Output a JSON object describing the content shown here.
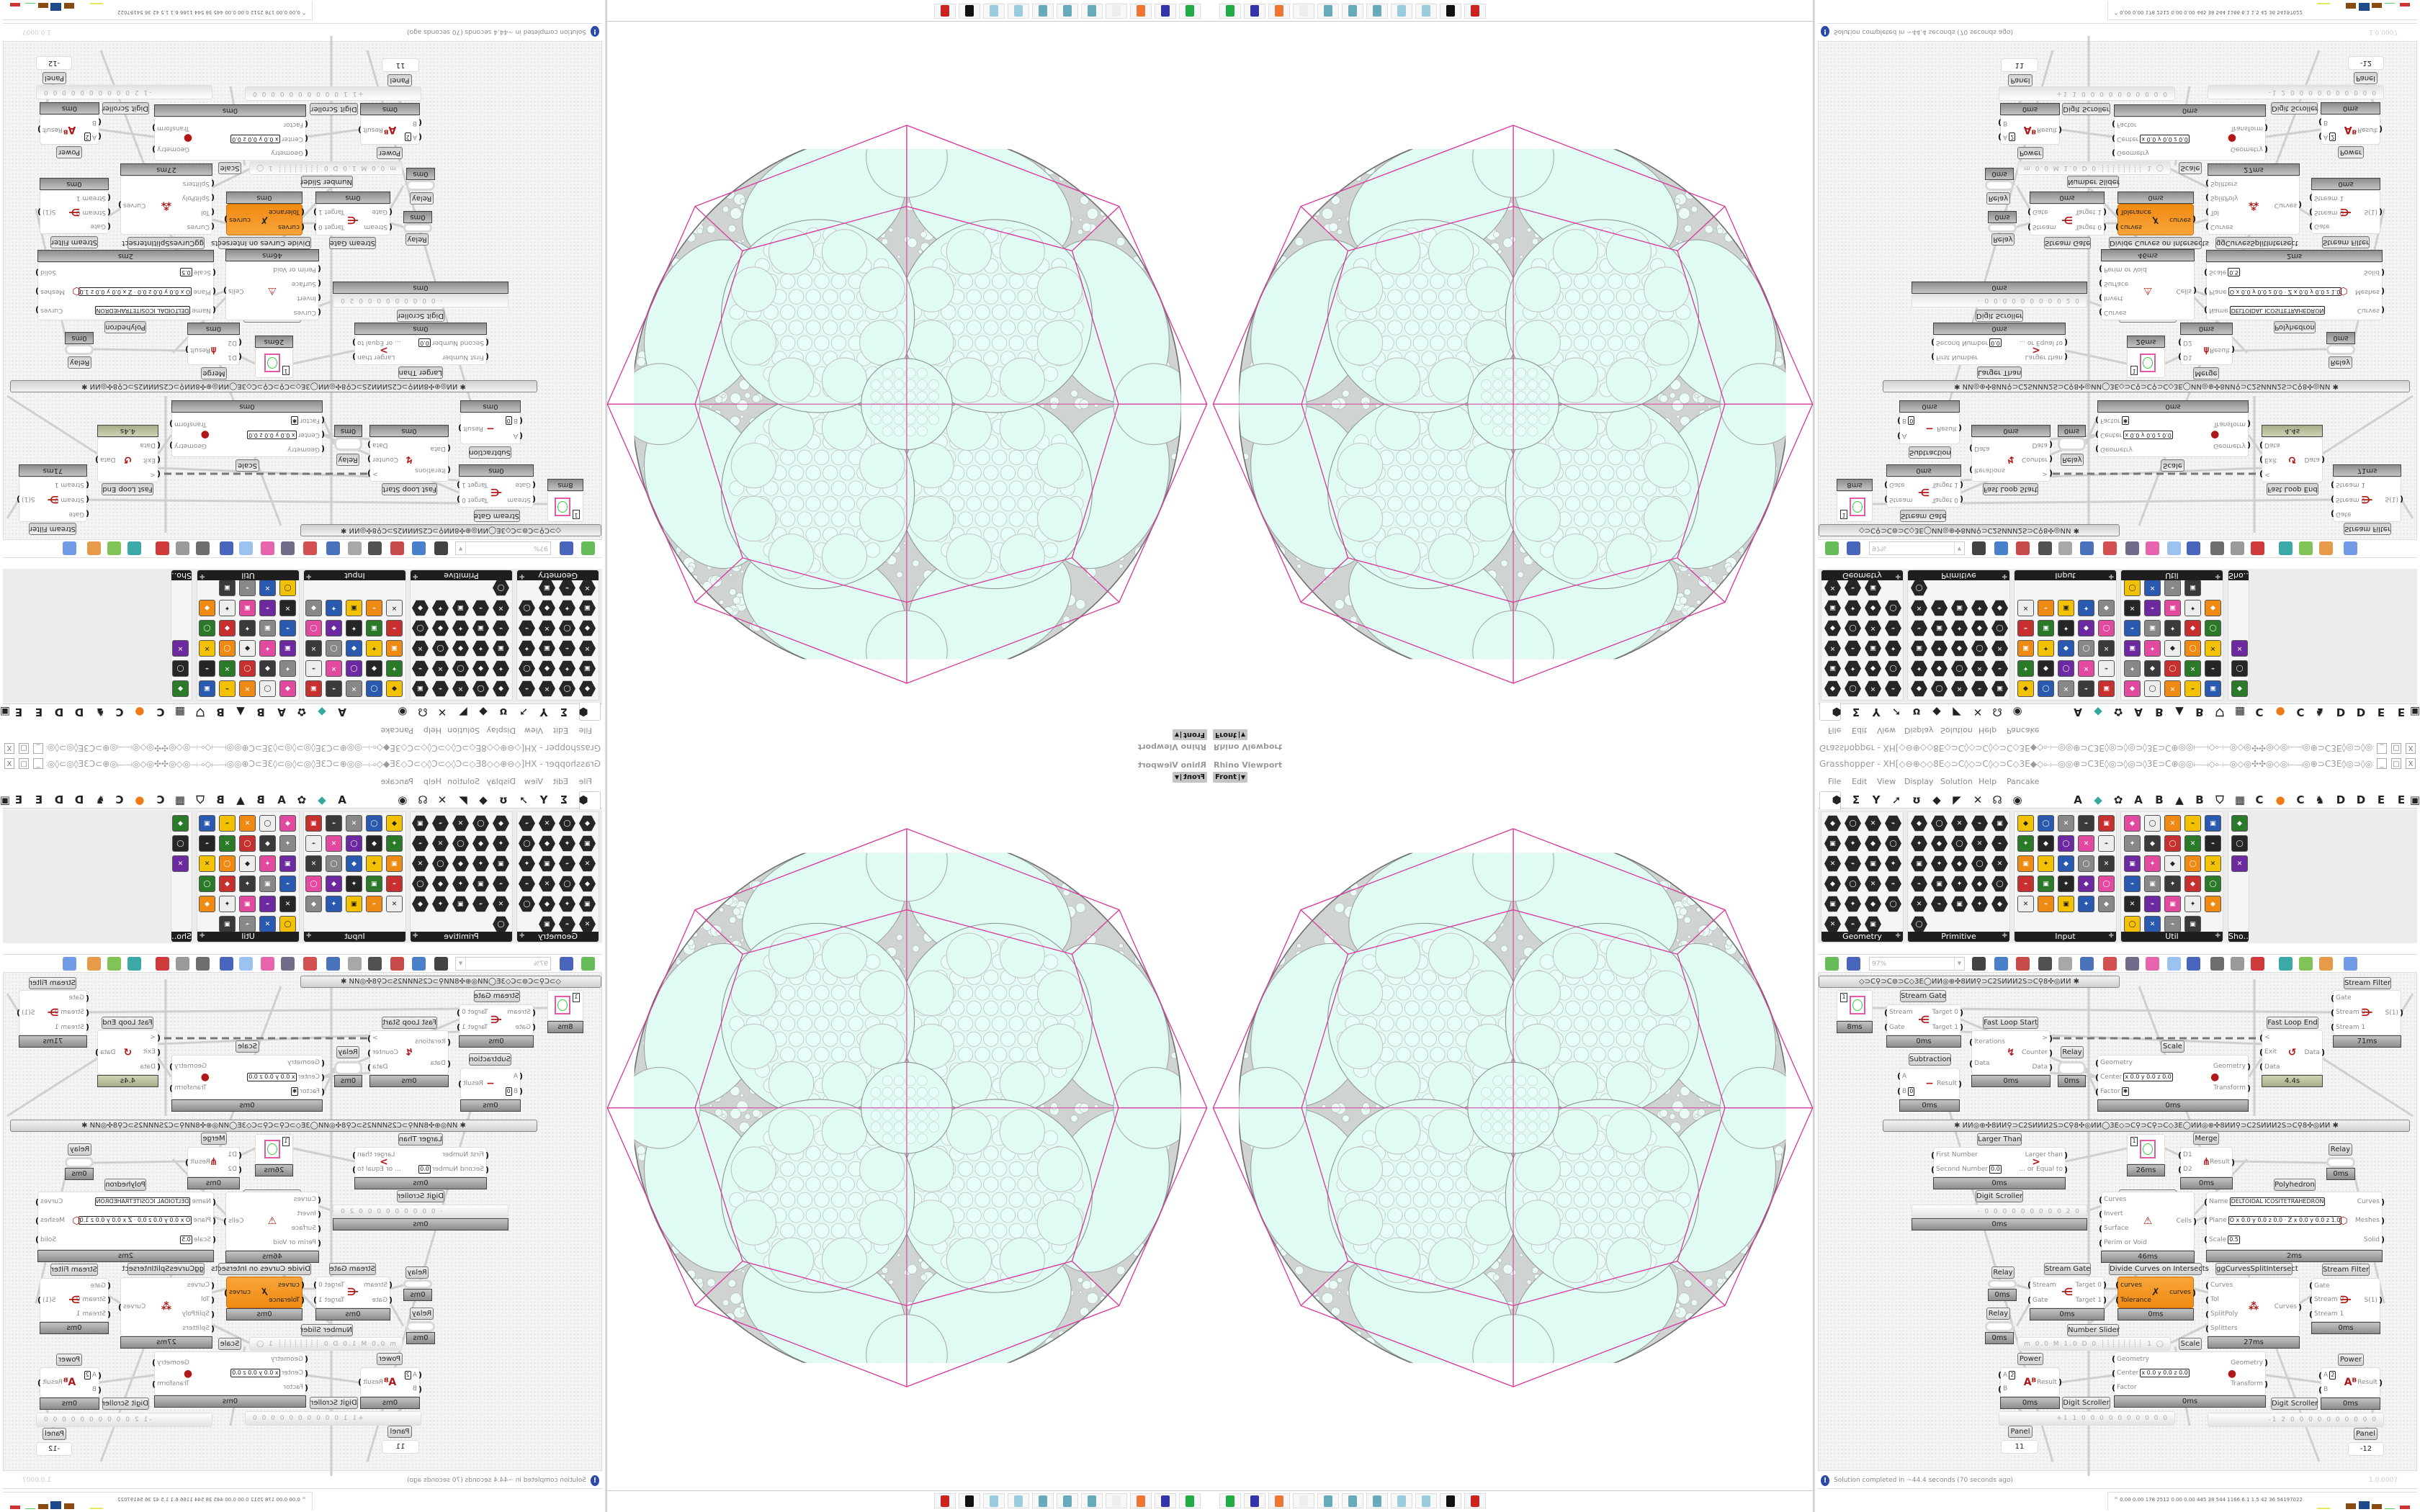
{
  "viewport": {
    "label": "Rhino Viewport",
    "view": "Front",
    "colors": {
      "fill": "#e0fbf3",
      "outline": "#d63c9a",
      "lace": "#c4c4c4"
    },
    "taskbar_icons": [
      "rhino-console-icon",
      "floppy-64-icon",
      "firefox-icon",
      "blank-app-icon",
      "calculator-icon",
      "calculator-icon",
      "calculator-icon",
      "notepad-icon",
      "notepad-icon",
      "inkscape-icon",
      "red-app-icon"
    ]
  },
  "grasshopper": {
    "title": "Grasshopper - XH[◇⊖⊕◇◇8E◇⊃C◊◇⊃C◊◇⊃C◇3E◆◇⟜⟝◎◎⊕⊃C3E◊◎⊃◊◎⊃◊3E⊃C⊕◎◎⟝⟞◇⟜⟝◎◇◎✣✣◎◇◎⟝⟞◎⊕⊃C3E◊◎⊃◊◎⊃◊◎…",
    "window_buttons": [
      "_",
      "□",
      "X"
    ],
    "menu": [
      "File",
      "Edit",
      "View",
      "Display",
      "Solution",
      "Help",
      "Pancake"
    ],
    "tabs_left": [
      "⬢",
      "Σ",
      "Y",
      "➚",
      "ʊ",
      "◆",
      "◤",
      "✕",
      "☊",
      "◉"
    ],
    "tabs_right": [
      "A",
      "◆",
      "✿",
      "A",
      "B",
      "▲",
      "B",
      "⛉",
      "▦",
      "C",
      "●",
      "C",
      "♞",
      "D",
      "D",
      "E",
      "E",
      "▣"
    ],
    "palette": [
      {
        "label": "Geometry",
        "shape": "hex",
        "icons": [
          "box-icon",
          "brep-icon",
          "circle-icon",
          "spiral-icon",
          "cross-icon",
          "surface-icon",
          "mesh-icon",
          "field-icon",
          "arrow-icon",
          "plane-icon",
          "text-tag-icon",
          "curve-wave-icon",
          "ring-icon",
          "cube-icon",
          "group-icon",
          "atom-icon",
          "line-icon",
          "sphere-icon",
          "mesh-face-icon",
          "transform-icon",
          "twisted-box-icon",
          "sphere-mesh-icon",
          "magnet-icon"
        ]
      },
      {
        "label": "Primitive",
        "shape": "hex",
        "icons": [
          "colour-icon",
          "culture-icon",
          "matrix-icon",
          "domain-icon",
          "path-icon",
          "data-icon",
          "vector-field-icon",
          "time-icon",
          "file-path-icon",
          "generic-icon",
          "scissors-icon",
          "string-icon",
          "shader-icon",
          "data-path-icon",
          "integer-icon",
          "interval-icon",
          "tree-icon",
          "complex-icon",
          "number-icon",
          "grid-icon",
          "complex-number-icon",
          "file-icon",
          "text-icon",
          "id-icon",
          "material-icon",
          "transform-icon"
        ]
      },
      {
        "label": "Input",
        "shape": "sq",
        "icons": [
          "import-icon",
          "button-icon",
          "colour-wheel-icon",
          "3dm-icon",
          "binary-icon",
          "graph-icon",
          "gradient-icon",
          "control-knob-icon",
          "xyz-icon",
          "toggle-icon",
          "colour-swatch-icon",
          "colour-picker-icon",
          "img-icon",
          "knob-icon",
          "checker-icon",
          "graph-mapper-icon",
          "pdb-icon",
          "slider-icon",
          "calendar-icon",
          "gimbal-icon",
          "shp-icon",
          "value-list-icon",
          "clock-icon",
          "spectrum-icon",
          "id-tag-icon"
        ]
      },
      {
        "label": "Util",
        "shape": "sq",
        "icons": [
          "cherry-icon",
          "magnet-icon",
          "arrow-right-icon",
          "cluster-icon",
          "text-icon",
          "play-icon",
          "record-icon",
          "search-icon",
          "spiral-icon",
          "sphere-icon",
          "axes-icon",
          "pencil-icon",
          "stopwatch-icon",
          "seven-icon",
          "flask-icon",
          "tree-icon",
          "question-icon",
          "egg-icon",
          "key-icon",
          "function-icon",
          "blob-icon",
          "refresh-icon",
          "premiere-icon",
          "number-icon",
          "palette-icon",
          "abc-icon",
          "arrow-icon",
          "gauge-icon",
          "close-icon"
        ]
      },
      {
        "label": "Sho…",
        "shape": "sq",
        "icons": [
          "headset-icon",
          "headset-icon",
          "presentation-icon"
        ]
      }
    ],
    "toolbar": {
      "zoom": "97%",
      "items": [
        "open-file-icon",
        "save-file-icon",
        "zoom-extents-icon",
        "preview-eye-icon",
        "sketch-icon",
        "bracket-icon",
        "at-icon",
        "gha-icon",
        "image-icon",
        "search-s-icon",
        "package-icon",
        "balloon-icon",
        "cross-wires-icon",
        "bell-icon",
        "cylinder-icon",
        "red-gem-icon",
        "teal-shape-icon",
        "green-shape-icon",
        "sphere-half-icon",
        "blue-sphere-icon"
      ]
    },
    "group_bars": [
      "◇⊃C⚲⊃C⊚⊃C◇3E◯ИИ◎⊕✣8ИИ⚲⊃C2SИИИ2S⊃C⚲8✣◎ИИ     ✱",
      "✱      ИИ◎⊕✣8ИИ⚲⊃C2SИИИ2S⊃C⚲8✣◎ИИ◯3E◇⊃C⚲⊃C⚲⊃C◇3E◯ИИ◎⊕✣8ИИ⚲⊃C2SИИИ2S⊃C⚲8✣◎ИИ      ✱"
    ],
    "nodes": [
      {
        "type": "preview",
        "value": "1",
        "timer": "8ms"
      },
      {
        "type": "component",
        "name": "Stream Gate",
        "icon": "⋲",
        "inputs": [
          "Stream",
          "Gate"
        ],
        "outputs": [
          "Target 0",
          "Target 1"
        ],
        "timer": "0ms"
      },
      {
        "type": "component",
        "name": "Fast Loop Start",
        "icon": "↯",
        "inputs": [
          "Iterations",
          "Data"
        ],
        "outputs": [
          ">",
          "Counter",
          "Data"
        ],
        "timer": "0ms"
      },
      {
        "type": "relay",
        "name": "Relay",
        "timer": "0ms"
      },
      {
        "type": "component",
        "name": "Subtraction",
        "icon": "−",
        "inputs": [
          "A",
          {
            "label": "B",
            "value": "0"
          }
        ],
        "outputs": [
          "Result"
        ],
        "timer": "0ms"
      },
      {
        "type": "component",
        "name": "Scale",
        "icon": "●",
        "inputs": [
          "Geometry",
          {
            "label": "Center",
            "value": "x 0.0 y 0.0 z 0.0"
          },
          {
            "label": "Factor",
            "value": "✱"
          }
        ],
        "outputs": [
          "Geometry",
          "Transform"
        ],
        "timer": "0ms"
      },
      {
        "type": "component",
        "name": "Fast Loop End",
        "icon": "↺",
        "inputs": [
          "<",
          "Exit",
          "Data"
        ],
        "outputs": [
          "Data"
        ],
        "timer": "4.4s",
        "timer_style": "green"
      },
      {
        "type": "component",
        "name": "Stream Filter",
        "icon": "⋺",
        "inputs": [
          "Gate",
          "Stream 0",
          "Stream 1"
        ],
        "outputs": [
          "S(1)"
        ],
        "timer": "71ms"
      },
      {
        "type": "component",
        "name": "Larger Than",
        "icon": ">",
        "inputs": [
          "First Number",
          {
            "label": "Second Number",
            "value": "0.0"
          }
        ],
        "outputs": [
          "Larger than",
          "... or Equal to"
        ],
        "timer": "0ms"
      },
      {
        "type": "preview",
        "value": "1",
        "timer": "26ms",
        "name": "ggNetworkPatch"
      },
      {
        "type": "component",
        "name": "Merge",
        "icon": "⋔",
        "inputs": [
          "D1",
          "D2"
        ],
        "outputs": [
          "Result"
        ],
        "timer": "0ms"
      },
      {
        "type": "relay",
        "name": "Relay",
        "timer": "0ms"
      },
      {
        "type": "scroller",
        "name": "Digit Scroller",
        "digits": "· 0 0 0 0 0 0 0 0 0 2 0",
        "timer": "0ms"
      },
      {
        "type": "component",
        "name": "",
        "icon": "⚠",
        "inputs": [
          "Curves",
          "Invert",
          "Surface",
          "Perim or Void"
        ],
        "outputs": [
          "Cells"
        ],
        "timer": "46ms"
      },
      {
        "type": "component",
        "name": "Polyhedron",
        "icon": "⬡",
        "inputs": [
          {
            "label": "Name",
            "value": "DELTOIDAL ICOSITETRAHEDRON"
          },
          {
            "label": "Plane",
            "value": "O x 0.0 y 0.0 z 0.0 · Z x 0.0 y 0.0 z 1.0"
          },
          {
            "label": "Scale",
            "value": "0.5"
          }
        ],
        "outputs": [
          "Curves",
          "Meshes",
          "Solid"
        ],
        "timer": "2ms"
      },
      {
        "type": "relay",
        "name": "Relay",
        "timer": "0ms"
      },
      {
        "type": "relay",
        "name": "Relay",
        "timer": "0ms"
      },
      {
        "type": "component",
        "name": "Stream Gate",
        "icon": "⋲",
        "inputs": [
          "Stream",
          "Gate"
        ],
        "outputs": [
          "Target 0",
          "Target 1"
        ],
        "timer": "0ms"
      },
      {
        "type": "component",
        "name": "Divide Curves on Intersects",
        "icon": "✗",
        "style": "orange",
        "inputs": [
          "curves",
          "Tolerance"
        ],
        "outputs": [
          "curves"
        ],
        "timer": "0ms"
      },
      {
        "type": "component",
        "name": "ggCurvesSplitIntersect",
        "icon": "⁂",
        "inputs": [
          "Curves",
          "Tol",
          "SplitPoly",
          "Splitters"
        ],
        "outputs": [
          "Curves"
        ],
        "timer": "27ms"
      },
      {
        "type": "component",
        "name": "Stream Filter",
        "icon": "⋺",
        "inputs": [
          "Gate",
          "Stream 0",
          "Stream 1"
        ],
        "outputs": [
          "S(1)"
        ],
        "timer": "0ms"
      },
      {
        "type": "numslider",
        "name": "Number Slider",
        "digits": "m 0.0  M 1.0  D 0   ┊┊┊┊┊┊┊┊ 1 ◯"
      },
      {
        "type": "component",
        "name": "Scale",
        "icon": "●",
        "inputs": [
          "Geometry",
          {
            "label": "Center",
            "value": "x 0.0 y 0.0 z 0.0"
          },
          "Factor"
        ],
        "outputs": [
          "Geometry",
          "Transform"
        ],
        "timer": "0ms"
      },
      {
        "type": "component",
        "name": "Power",
        "icon": "Aᴮ",
        "inputs": [
          {
            "label": "A",
            "value": "2"
          },
          "B"
        ],
        "outputs": [
          "Result"
        ],
        "timer": "0ms"
      },
      {
        "type": "component",
        "name": "Power",
        "icon": "Aᴮ",
        "inputs": [
          {
            "label": "A",
            "value": "2"
          },
          "B"
        ],
        "outputs": [
          "Result"
        ],
        "timer": "0ms"
      },
      {
        "type": "scroller",
        "name": "Digit Scroller",
        "digits": "+1 1 0 0 0 0 0 0 0 0 0 0"
      },
      {
        "type": "scroller",
        "name": "Digit Scroller",
        "digits": "-1 2 0 0 0 0 0 0 0 0 0 0"
      },
      {
        "type": "panel",
        "name": "Panel",
        "value": "11"
      },
      {
        "type": "panel",
        "name": "Panel",
        "value": "-12"
      }
    ],
    "status": "Solution completed in ~44.4 seconds (70 seconds ago)",
    "version": "1.0.0007",
    "perf_readout": "^ 0.00 0.00 178 2512 0.00 0.00 445 38 544 1166 6.1 1.5 42 36 54197022"
  }
}
